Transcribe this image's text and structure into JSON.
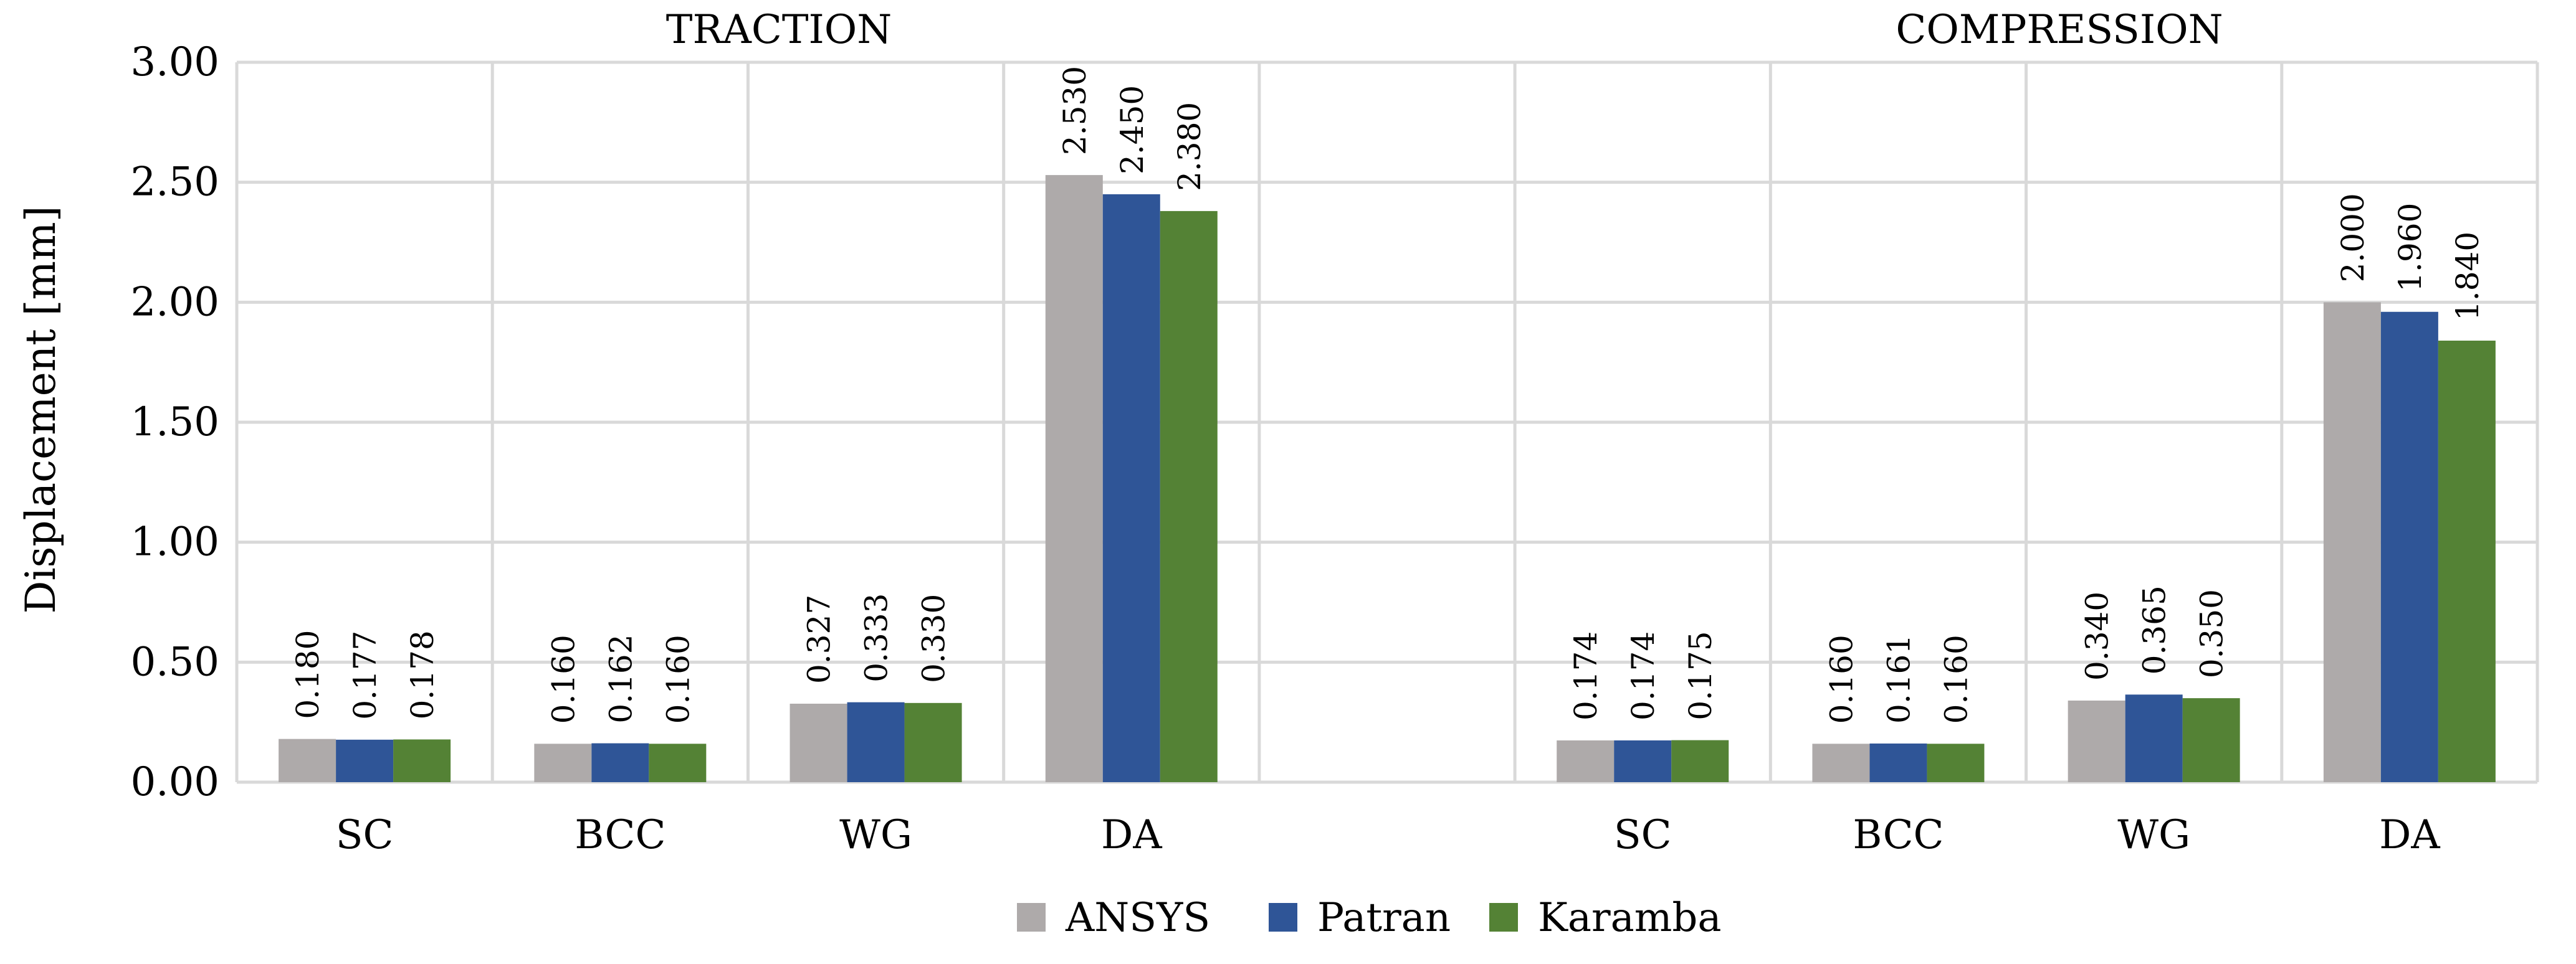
{
  "chart_data": {
    "type": "bar",
    "title": "",
    "xlabel": "",
    "ylabel": "Displacement [mm]",
    "ylim": [
      0,
      3.0
    ],
    "ytick_step": 0.5,
    "yticks": [
      "0.00",
      "0.50",
      "1.00",
      "1.50",
      "2.00",
      "2.50",
      "3.00"
    ],
    "grid": true,
    "legend_position": "bottom-center",
    "groups": [
      {
        "title": "TRACTION",
        "categories": [
          "SC",
          "BCC",
          "WG",
          "DA"
        ]
      },
      {
        "title": "COMPRESSION",
        "categories": [
          "SC",
          "BCC",
          "WG",
          "DA"
        ]
      }
    ],
    "categories": [
      "SC",
      "BCC",
      "WG",
      "DA",
      "",
      "SC",
      "BCC",
      "WG",
      "DA"
    ],
    "series": [
      {
        "name": "ANSYS",
        "color": "#aeaaaa",
        "values": [
          0.18,
          0.16,
          0.327,
          2.53,
          null,
          0.174,
          0.16,
          0.34,
          2.0
        ],
        "labels": [
          "0.180",
          "0.160",
          "0.327",
          "2.530",
          "",
          "0.174",
          "0.160",
          "0.340",
          "2.000"
        ]
      },
      {
        "name": "Patran",
        "color": "#2f5597",
        "values": [
          0.177,
          0.162,
          0.333,
          2.45,
          null,
          0.174,
          0.161,
          0.365,
          1.96
        ],
        "labels": [
          "0.177",
          "0.162",
          "0.333",
          "2.450",
          "",
          "0.174",
          "0.161",
          "0.365",
          "1.960"
        ]
      },
      {
        "name": "Karamba",
        "color": "#548235",
        "values": [
          0.178,
          0.16,
          0.33,
          2.38,
          null,
          0.175,
          0.16,
          0.35,
          1.84
        ],
        "labels": [
          "0.178",
          "0.160",
          "0.330",
          "2.380",
          "",
          "0.175",
          "0.160",
          "0.350",
          "1.840"
        ]
      }
    ]
  }
}
